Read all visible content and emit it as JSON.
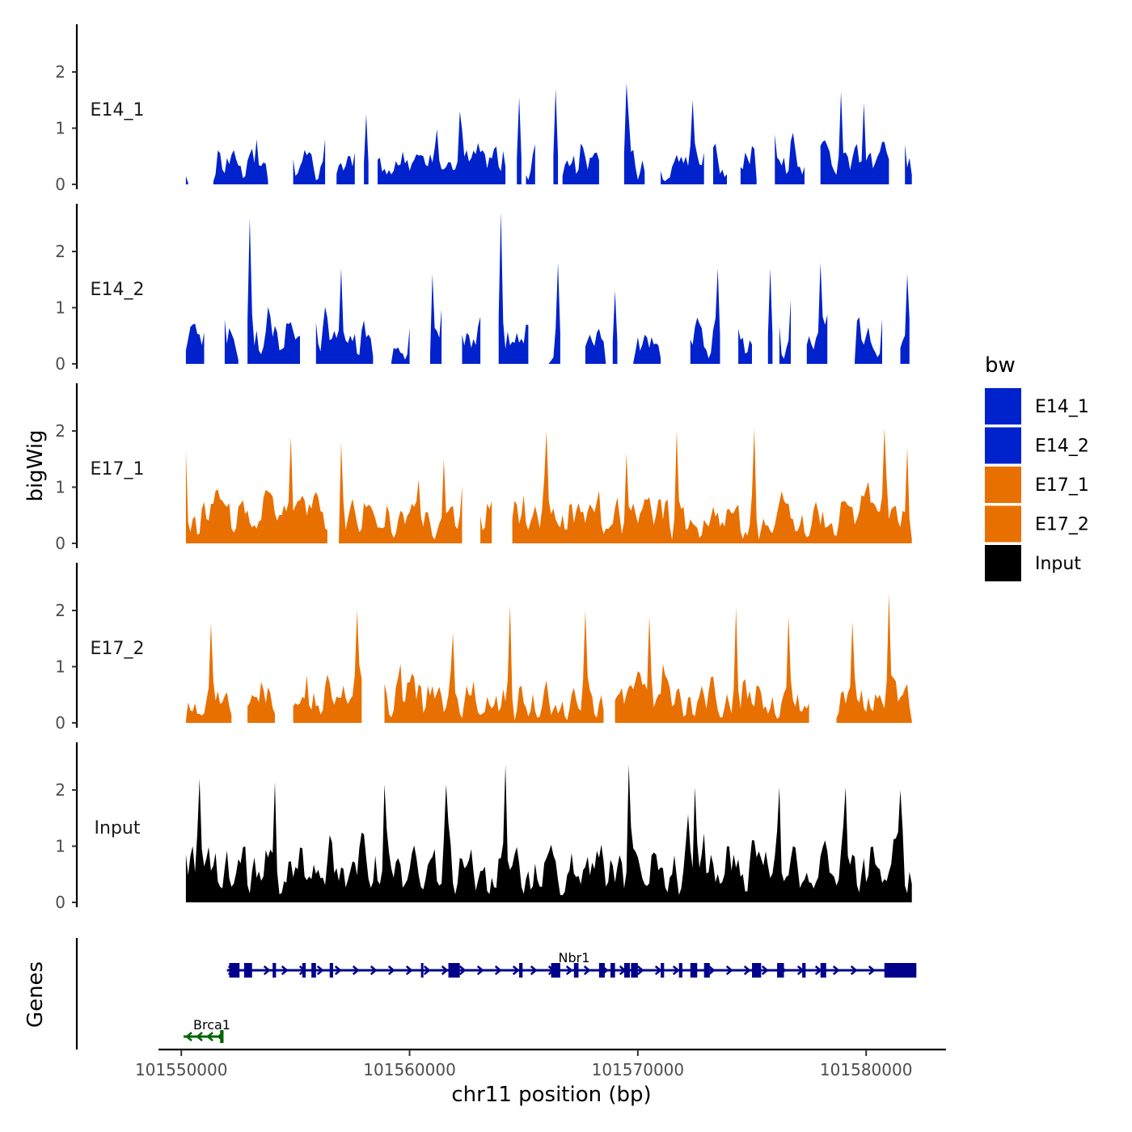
{
  "chart_data": {
    "type": "area",
    "title": "",
    "xlabel": "chr11 position (bp)",
    "ylabel": "bigWig",
    "genes_label": "Genes",
    "xlim": [
      101549000,
      101583500
    ],
    "ylim": [
      0,
      2.8
    ],
    "x_ticks": [
      101550000,
      101560000,
      101570000,
      101580000
    ],
    "x_tick_labels": [
      "101550000",
      "101560000",
      "101570000",
      "101580000"
    ],
    "y_ticks": [
      0,
      1,
      2
    ],
    "y_tick_labels": [
      "0",
      "1",
      "2"
    ],
    "legend": {
      "title": "bw",
      "position": "right",
      "entries": [
        {
          "label": "E14_1",
          "color": "#0022CC"
        },
        {
          "label": "E14_2",
          "color": "#0022CC"
        },
        {
          "label": "E17_1",
          "color": "#E87000"
        },
        {
          "label": "E17_2",
          "color": "#E87000"
        },
        {
          "label": "Input",
          "color": "#000000"
        }
      ]
    },
    "region": {
      "start": 101550200,
      "end": 101582000,
      "bin_size": 100
    },
    "series": [
      {
        "name": "E14_1",
        "label": "E14_1",
        "color": "#0022CC",
        "seed": 11,
        "scale": 0.9,
        "gap_rate": 0.12,
        "peak_x": [
          101553250,
          101558100,
          101562200,
          101564800,
          101566400,
          101569500,
          101572400,
          101578900,
          101579900
        ],
        "peak_y": [
          0.8,
          1.25,
          1.3,
          1.55,
          1.7,
          1.8,
          1.5,
          1.65,
          1.45
        ]
      },
      {
        "name": "E14_2",
        "label": "E14_2",
        "color": "#0022CC",
        "seed": 23,
        "scale": 1.0,
        "gap_rate": 0.12,
        "peak_x": [
          101553000,
          101557000,
          101561000,
          101564000,
          101566500,
          101569000,
          101573500,
          101575800,
          101578000,
          101581800
        ],
        "peak_y": [
          2.6,
          1.7,
          1.6,
          2.7,
          1.8,
          1.3,
          1.7,
          1.7,
          1.8,
          1.6
        ]
      },
      {
        "name": "E17_1",
        "label": "E17_1",
        "color": "#E87000",
        "seed": 37,
        "scale": 1.05,
        "gap_rate": 0.01,
        "peak_x": [
          101550200,
          101554800,
          101557000,
          101561500,
          101566000,
          101569500,
          101571700,
          101575100,
          101580800,
          101581800
        ],
        "peak_y": [
          1.65,
          1.9,
          1.8,
          1.5,
          2.0,
          1.6,
          2.0,
          2.05,
          2.05,
          1.7
        ]
      },
      {
        "name": "E17_2",
        "label": "E17_2",
        "color": "#E87000",
        "seed": 53,
        "scale": 1.05,
        "gap_rate": 0.02,
        "peak_x": [
          101551300,
          101557700,
          101561900,
          101564400,
          101567700,
          101570500,
          101574300,
          101576600,
          101579400,
          101581000
        ],
        "peak_y": [
          1.78,
          2.0,
          1.6,
          2.1,
          2.0,
          1.9,
          2.05,
          1.9,
          1.8,
          2.3
        ]
      },
      {
        "name": "Input",
        "label": "Input",
        "color": "#000000",
        "seed": 71,
        "scale": 1.35,
        "gap_rate": 0.0,
        "peak_x": [
          101550800,
          101554100,
          101558900,
          101561600,
          101564200,
          101569600,
          101572500,
          101576200,
          101579100,
          101581500
        ],
        "peak_y": [
          2.2,
          2.15,
          2.1,
          2.1,
          2.45,
          2.45,
          2.05,
          2.05,
          2.05,
          2.0
        ]
      }
    ],
    "genes": [
      {
        "name": "Nbr1",
        "label": "Nbr1",
        "strand": "+",
        "start": 101552000,
        "end": 101582200,
        "color": "#00008B",
        "exons": [
          [
            101552100,
            101552550
          ],
          [
            101552750,
            101553100
          ],
          [
            101554000,
            101554150
          ],
          [
            101555300,
            101555450
          ],
          [
            101555700,
            101555900
          ],
          [
            101556500,
            101556650
          ],
          [
            101560500,
            101560600
          ],
          [
            101561700,
            101562200
          ],
          [
            101564800,
            101564950
          ],
          [
            101566200,
            101566600
          ],
          [
            101567200,
            101567400
          ],
          [
            101568300,
            101568550
          ],
          [
            101568800,
            101569000
          ],
          [
            101569400,
            101569650
          ],
          [
            101569700,
            101570000
          ],
          [
            101571000,
            101571150
          ],
          [
            101571800,
            101571950
          ],
          [
            101572300,
            101572600
          ],
          [
            101572900,
            101573150
          ],
          [
            101575000,
            101575400
          ],
          [
            101576100,
            101576400
          ],
          [
            101577200,
            101577350
          ],
          [
            101578000,
            101578250
          ],
          [
            101580800,
            101582200
          ]
        ]
      },
      {
        "name": "Brca1",
        "label": "Brca1",
        "strand": "-",
        "start": 101550100,
        "end": 101551850,
        "color": "#006400",
        "exons": [
          [
            101551700,
            101551850
          ]
        ]
      }
    ]
  }
}
